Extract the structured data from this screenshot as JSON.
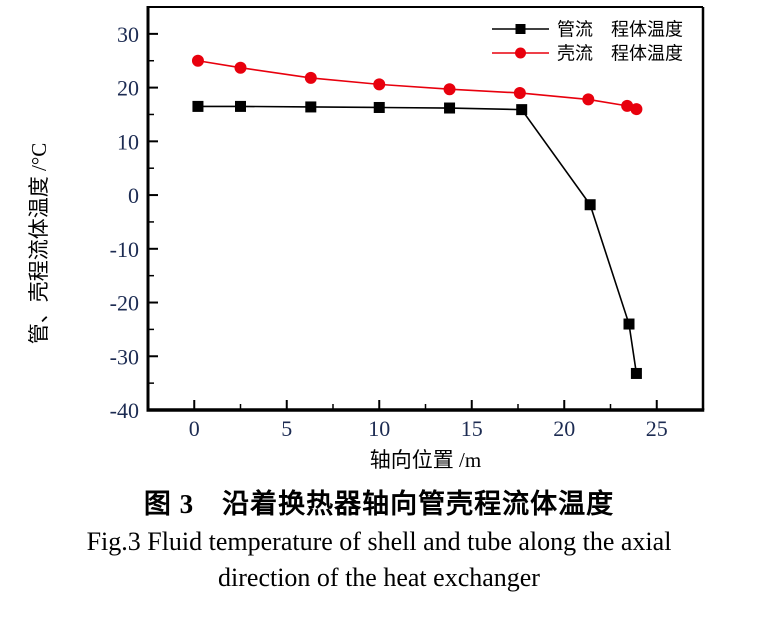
{
  "figure": {
    "caption_zh": "图 3　沿着换热器轴向管壳程流体温度",
    "caption_en_line1": "Fig.3  Fluid temperature of shell and tube along the axial",
    "caption_en_line2": "direction of the heat exchanger"
  },
  "chart_data": {
    "type": "line",
    "title": "",
    "xlabel": "轴向位置 /m",
    "ylabel": "管、壳程流体温度 /°C",
    "xlim": [
      -2.5,
      27.5
    ],
    "ylim": [
      -40,
      35
    ],
    "x_major_ticks": [
      0,
      5,
      10,
      15,
      20,
      25
    ],
    "x_minor_step": 2.5,
    "y_major_ticks": [
      -40,
      -30,
      -20,
      -10,
      0,
      10,
      20,
      30
    ],
    "y_minor_step": 5,
    "grid": false,
    "legend_position": "top-right-inside",
    "axis_color": "#000000",
    "tick_label_color": "#1c2b52",
    "series": [
      {
        "name": "管流　程体温度",
        "semantic": "tube-flow-temperature",
        "marker": "square",
        "color": "#000000",
        "x": [
          0.2,
          2.5,
          6.3,
          10.0,
          13.8,
          17.7,
          21.4,
          23.5,
          23.9
        ],
        "y": [
          16.5,
          16.5,
          16.4,
          16.3,
          16.2,
          15.9,
          -1.8,
          -24.0,
          -33.2
        ]
      },
      {
        "name": "壳流　程体温度",
        "semantic": "shell-flow-temperature",
        "marker": "circle",
        "color": "#e8000d",
        "x": [
          0.2,
          2.5,
          6.3,
          10.0,
          13.8,
          17.6,
          21.3,
          23.4,
          23.9
        ],
        "y": [
          25.0,
          23.7,
          21.8,
          20.6,
          19.7,
          19.0,
          17.8,
          16.6,
          16.0
        ]
      }
    ]
  }
}
